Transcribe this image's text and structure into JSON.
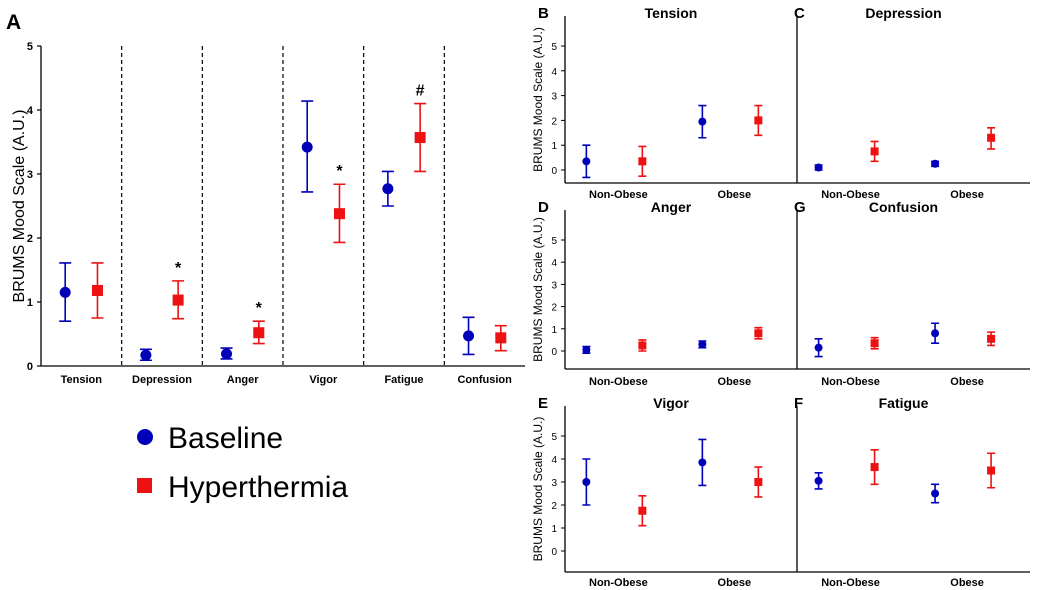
{
  "colors": {
    "baseline": "#0000b8",
    "hyperthermia": "#ee1111",
    "axis": "#000000"
  },
  "legend": {
    "baseline": "Baseline",
    "hyperthermia": "Hyperthermia"
  },
  "chart_data": [
    {
      "panel": "A",
      "type": "scatter",
      "title": "",
      "ylabel": "BRUMS Mood Scale (A.U.)",
      "ylim": [
        0,
        5
      ],
      "yticks": [
        "0",
        "1",
        "2",
        "3",
        "4",
        "5"
      ],
      "categories": [
        "Tension",
        "Depression",
        "Anger",
        "Vigor",
        "Fatigue",
        "Confusion"
      ],
      "series": [
        {
          "name": "Baseline",
          "values": [
            1.15,
            0.17,
            0.19,
            3.42,
            2.77,
            0.47
          ],
          "err_low": [
            0.7,
            0.09,
            0.11,
            2.72,
            2.5,
            0.18
          ],
          "err_high": [
            1.61,
            0.26,
            0.28,
            4.14,
            3.04,
            0.76
          ]
        },
        {
          "name": "Hyperthermia",
          "values": [
            1.18,
            1.03,
            0.52,
            2.38,
            3.57,
            0.44
          ],
          "err_low": [
            0.75,
            0.74,
            0.35,
            1.93,
            3.04,
            0.24
          ],
          "err_high": [
            1.61,
            1.33,
            0.7,
            2.84,
            4.1,
            0.63
          ]
        }
      ],
      "annotations": [
        {
          "category": "Depression",
          "text": "*"
        },
        {
          "category": "Anger",
          "text": "*"
        },
        {
          "category": "Vigor",
          "text": "*"
        },
        {
          "category": "Fatigue",
          "text": "#"
        }
      ]
    },
    {
      "panel": "B",
      "type": "scatter",
      "title": "Tension",
      "ylabel": "BRUMS Mood Scale (A.U.)",
      "ylim": [
        0,
        5
      ],
      "yticks": [
        "0",
        "1",
        "2",
        "3",
        "4",
        "5"
      ],
      "categories": [
        "Non-Obese",
        "Obese"
      ],
      "series": [
        {
          "name": "Baseline",
          "values": [
            0.35,
            1.95
          ],
          "err_low": [
            -0.3,
            1.3
          ],
          "err_high": [
            1.0,
            2.6
          ]
        },
        {
          "name": "Hyperthermia",
          "values": [
            0.35,
            2.0
          ],
          "err_low": [
            -0.25,
            1.4
          ],
          "err_high": [
            0.95,
            2.6
          ]
        }
      ]
    },
    {
      "panel": "C",
      "type": "scatter",
      "title": "Depression",
      "ylabel": "",
      "ylim": [
        0,
        5
      ],
      "categories": [
        "Non-Obese",
        "Obese"
      ],
      "series": [
        {
          "name": "Baseline",
          "values": [
            0.1,
            0.25
          ],
          "err_low": [
            0.0,
            0.15
          ],
          "err_high": [
            0.2,
            0.35
          ]
        },
        {
          "name": "Hyperthermia",
          "values": [
            0.75,
            1.3
          ],
          "err_low": [
            0.35,
            0.85
          ],
          "err_high": [
            1.15,
            1.7
          ]
        }
      ]
    },
    {
      "panel": "D",
      "type": "scatter",
      "title": "Anger",
      "ylabel": "BRUMS Mood Scale (A.U.)",
      "ylim": [
        0,
        5
      ],
      "yticks": [
        "0",
        "1",
        "2",
        "3",
        "4",
        "5"
      ],
      "categories": [
        "Non-Obese",
        "Obese"
      ],
      "series": [
        {
          "name": "Baseline",
          "values": [
            0.05,
            0.3
          ],
          "err_low": [
            -0.1,
            0.15
          ],
          "err_high": [
            0.2,
            0.45
          ]
        },
        {
          "name": "Hyperthermia",
          "values": [
            0.25,
            0.8
          ],
          "err_low": [
            0.0,
            0.55
          ],
          "err_high": [
            0.5,
            1.05
          ]
        }
      ]
    },
    {
      "panel": "G",
      "type": "scatter",
      "title": "Confusion",
      "ylabel": "",
      "ylim": [
        0,
        5
      ],
      "categories": [
        "Non-Obese",
        "Obese"
      ],
      "series": [
        {
          "name": "Baseline",
          "values": [
            0.15,
            0.8
          ],
          "err_low": [
            -0.25,
            0.35
          ],
          "err_high": [
            0.55,
            1.25
          ]
        },
        {
          "name": "Hyperthermia",
          "values": [
            0.35,
            0.55
          ],
          "err_low": [
            0.1,
            0.25
          ],
          "err_high": [
            0.6,
            0.85
          ]
        }
      ]
    },
    {
      "panel": "E",
      "type": "scatter",
      "title": "Vigor",
      "ylabel": "BRUMS Mood Scale (A.U.)",
      "ylim": [
        0,
        5
      ],
      "yticks": [
        "0",
        "1",
        "2",
        "3",
        "4",
        "5"
      ],
      "categories": [
        "Non-Obese",
        "Obese"
      ],
      "series": [
        {
          "name": "Baseline",
          "values": [
            3.0,
            3.85
          ],
          "err_low": [
            2.0,
            2.85
          ],
          "err_high": [
            4.0,
            4.85
          ]
        },
        {
          "name": "Hyperthermia",
          "values": [
            1.75,
            3.0
          ],
          "err_low": [
            1.1,
            2.35
          ],
          "err_high": [
            2.4,
            3.65
          ]
        }
      ]
    },
    {
      "panel": "F",
      "type": "scatter",
      "title": "Fatigue",
      "ylabel": "",
      "ylim": [
        0,
        5
      ],
      "categories": [
        "Non-Obese",
        "Obese"
      ],
      "series": [
        {
          "name": "Baseline",
          "values": [
            3.05,
            2.5
          ],
          "err_low": [
            2.7,
            2.1
          ],
          "err_high": [
            3.4,
            2.9
          ]
        },
        {
          "name": "Hyperthermia",
          "values": [
            3.65,
            3.5
          ],
          "err_low": [
            2.9,
            2.75
          ],
          "err_high": [
            4.4,
            4.25
          ]
        }
      ]
    }
  ]
}
